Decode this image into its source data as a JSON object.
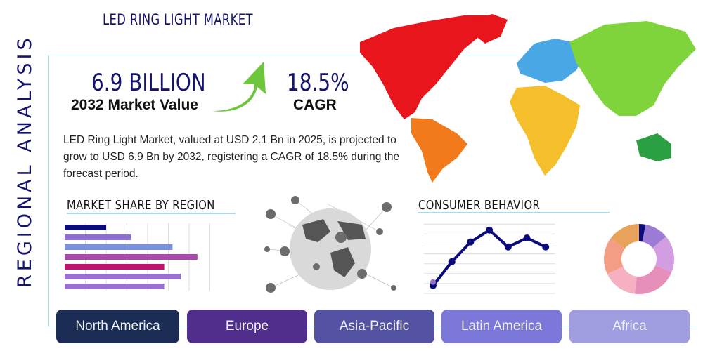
{
  "title": "LED RING LIGHT MARKET",
  "side_label": "REGIONAL ANALYSIS",
  "market_value": {
    "value": "6.9 BILLION",
    "label": "2032 Market Value"
  },
  "cagr": {
    "value": "18.5%",
    "label": "CAGR"
  },
  "description": "LED Ring Light Market, valued at USD 2.1 Bn in 2025, is projected to grow to USD 6.9 Bn by 2032, registering a CAGR of 18.5% during the forecast period.",
  "market_share_title": "MARKET SHARE BY REGION",
  "consumer_title": "CONSUMER BEHAVIOR",
  "regions": [
    "North America",
    "Europe",
    "Asia-Pacific",
    "Latin America",
    "Africa"
  ],
  "region_colors": [
    "#1b2d55",
    "#4f2e8c",
    "#5453a3",
    "#7b78d9",
    "#9f9ce0"
  ],
  "chart_data": [
    {
      "type": "bar",
      "orientation": "horizontal",
      "values": [
        2,
        3.2,
        5.2,
        6.4,
        4.8,
        5.6,
        4.8
      ],
      "colors": [
        "#0b0b7c",
        "#8e6fd1",
        "#7b91dd",
        "#a94aaa",
        "#c0126f",
        "#9a6fd1",
        "#9a6fd1"
      ],
      "xlim": [
        0,
        7
      ],
      "grid": true
    },
    {
      "type": "line",
      "values": [
        0.8,
        3.2,
        5.2,
        6.4,
        4.7,
        5.6,
        4.7
      ],
      "color": "#0b0b7c",
      "ylim": [
        0,
        7
      ],
      "grid": true
    },
    {
      "type": "pie",
      "donut": true,
      "values": [
        3,
        11,
        17,
        21,
        16,
        17,
        15
      ],
      "colors": [
        "#0b0b7c",
        "#9b7bd6",
        "#d39de2",
        "#e68fbb",
        "#f5b0c2",
        "#f39d85",
        "#e9a25c"
      ]
    }
  ]
}
